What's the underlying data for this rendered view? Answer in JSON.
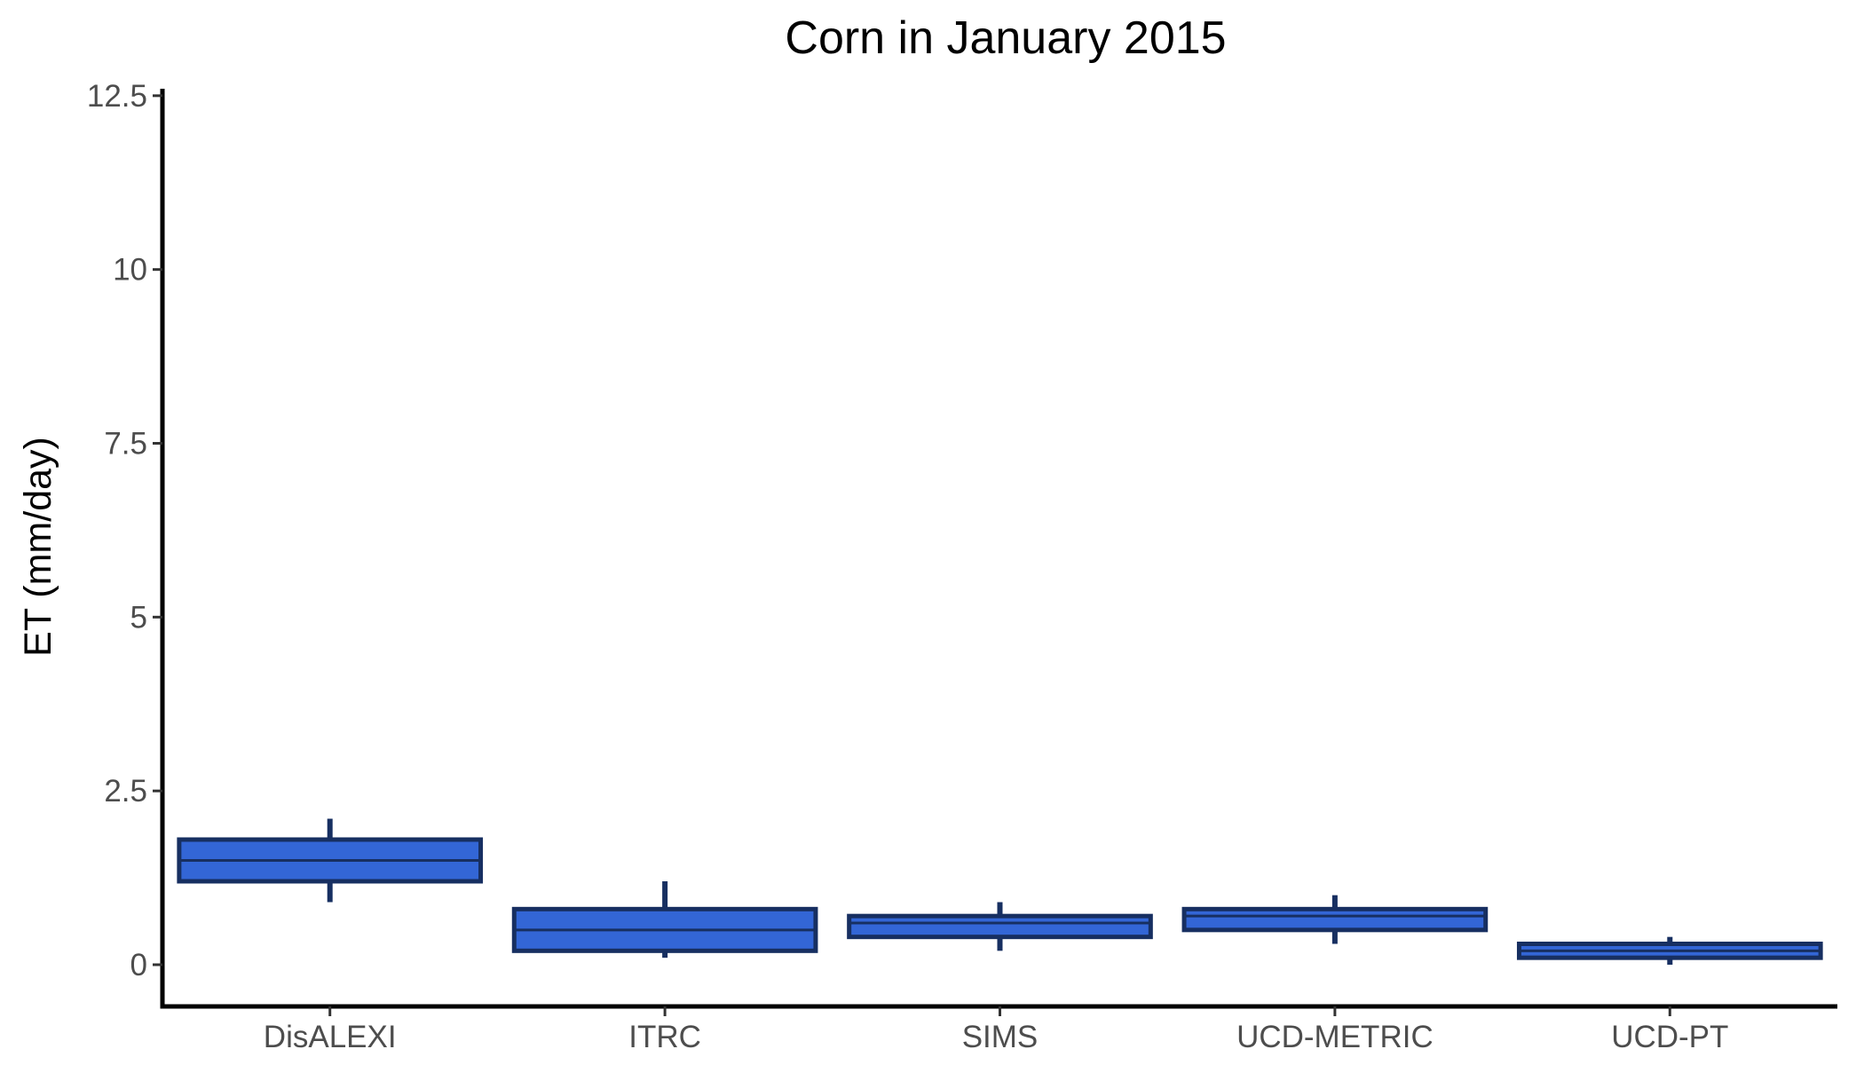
{
  "chart_data": {
    "type": "box",
    "title": "Corn in January 2015",
    "xlabel": "",
    "ylabel": "ET (mm/day)",
    "ylim": [
      -0.6,
      12.6
    ],
    "yticks": [
      0,
      2.5,
      5,
      7.5,
      10,
      12.5
    ],
    "ytick_labels": [
      "0",
      "2.5",
      "5",
      "7.5",
      "10",
      "12.5"
    ],
    "categories": [
      "DisALEXI",
      "ITRC",
      "SIMS",
      "UCD-METRIC",
      "UCD-PT"
    ],
    "boxes": [
      {
        "category": "DisALEXI",
        "whisker_low": 0.9,
        "q1": 1.2,
        "median": 1.5,
        "q3": 1.8,
        "whisker_high": 2.1
      },
      {
        "category": "ITRC",
        "whisker_low": 0.1,
        "q1": 0.2,
        "median": 0.5,
        "q3": 0.8,
        "whisker_high": 1.2
      },
      {
        "category": "SIMS",
        "whisker_low": 0.2,
        "q1": 0.4,
        "median": 0.6,
        "q3": 0.7,
        "whisker_high": 0.9
      },
      {
        "category": "UCD-METRIC",
        "whisker_low": 0.3,
        "q1": 0.5,
        "median": 0.7,
        "q3": 0.8,
        "whisker_high": 1.0
      },
      {
        "category": "UCD-PT",
        "whisker_low": 0.0,
        "q1": 0.1,
        "median": 0.2,
        "q3": 0.3,
        "whisker_high": 0.4
      }
    ],
    "grid": false,
    "colors": {
      "fill": "#3366d6",
      "outline": "#172f61",
      "axis": "#000000",
      "tick_text": "#4d4d4d"
    }
  }
}
